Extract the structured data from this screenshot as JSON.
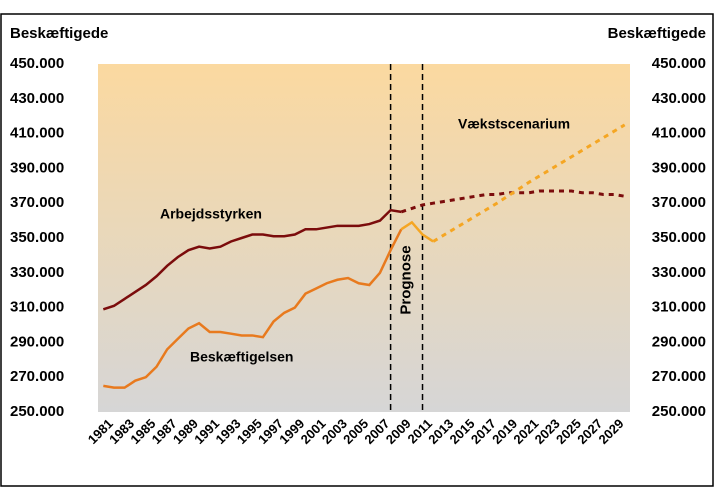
{
  "chart_data": {
    "type": "line",
    "y_title": "Beskæftigede",
    "y2_title": "Beskæftigede",
    "xlim": [
      1980.5,
      2030.5
    ],
    "xticks": [
      1981,
      1983,
      1985,
      1987,
      1989,
      1991,
      1993,
      1995,
      1997,
      1999,
      2001,
      2003,
      2005,
      2007,
      2009,
      2011,
      2013,
      2015,
      2017,
      2019,
      2021,
      2023,
      2025,
      2027,
      2029
    ],
    "ylim": [
      250000,
      450000
    ],
    "yticks": [
      {
        "value": 250000,
        "label": "250.000"
      },
      {
        "value": 270000,
        "label": "270.000"
      },
      {
        "value": 290000,
        "label": "290.000"
      },
      {
        "value": 310000,
        "label": "310.000"
      },
      {
        "value": 330000,
        "label": "330.000"
      },
      {
        "value": 350000,
        "label": "350.000"
      },
      {
        "value": 370000,
        "label": "370.000"
      },
      {
        "value": 390000,
        "label": "390.000"
      },
      {
        "value": 410000,
        "label": "410.000"
      },
      {
        "value": 430000,
        "label": "430.000"
      },
      {
        "value": 450000,
        "label": "450.000"
      }
    ],
    "y2lim": [
      250000,
      450000
    ],
    "y2ticks": [
      {
        "value": 250000,
        "label": "250.000"
      },
      {
        "value": 270000,
        "label": "270.000"
      },
      {
        "value": 290000,
        "label": "290.000"
      },
      {
        "value": 310000,
        "label": "310.000"
      },
      {
        "value": 330000,
        "label": "330.000"
      },
      {
        "value": 350000,
        "label": "350.000"
      },
      {
        "value": 370000,
        "label": "370.000"
      },
      {
        "value": 390000,
        "label": "390.000"
      },
      {
        "value": 410000,
        "label": "410.000"
      },
      {
        "value": 430000,
        "label": "430.000"
      },
      {
        "value": 450000,
        "label": "450.000"
      }
    ],
    "prognose": {
      "label": "Prognose",
      "from": 2008,
      "to": 2011
    },
    "series": [
      {
        "name": "Arbejdsstyrken",
        "color": "#7b0c0c",
        "dashed": false,
        "x": [
          1981,
          1982,
          1983,
          1984,
          1985,
          1986,
          1987,
          1988,
          1989,
          1990,
          1991,
          1992,
          1993,
          1994,
          1995,
          1996,
          1997,
          1998,
          1999,
          2000,
          2001,
          2002,
          2003,
          2004,
          2005,
          2006,
          2007,
          2008,
          2009
        ],
        "values": [
          309000,
          311000,
          315000,
          319000,
          323000,
          328000,
          334000,
          339000,
          343000,
          345000,
          344000,
          345000,
          348000,
          350000,
          352000,
          352000,
          351000,
          351000,
          352000,
          355000,
          355000,
          356000,
          357000,
          357000,
          357000,
          358000,
          360000,
          366000,
          365000
        ]
      },
      {
        "color": "#7b0c0c",
        "dashed": true,
        "x": [
          2009,
          2010,
          2011,
          2012,
          2013,
          2014,
          2015,
          2016,
          2017,
          2018,
          2019,
          2020,
          2021,
          2022,
          2023,
          2024,
          2025,
          2026,
          2027,
          2028,
          2029,
          2030
        ],
        "values": [
          365000,
          367000,
          369000,
          370000,
          371000,
          372000,
          373000,
          374000,
          375000,
          375000,
          376000,
          376000,
          376000,
          377000,
          377000,
          377000,
          377000,
          376000,
          376000,
          375000,
          375000,
          374000
        ]
      },
      {
        "name": "Beskæftigelsen",
        "color": "#e87a1e",
        "dashed": false,
        "x": [
          1981,
          1982,
          1983,
          1984,
          1985,
          1986,
          1987,
          1988,
          1989,
          1990,
          1991,
          1992,
          1993,
          1994,
          1995,
          1996,
          1997,
          1998,
          1999,
          2000,
          2001,
          2002,
          2003,
          2004,
          2005,
          2006,
          2007,
          2008,
          2009
        ],
        "values": [
          265000,
          264000,
          264000,
          268000,
          270000,
          276000,
          286000,
          292000,
          298000,
          301000,
          296000,
          296000,
          295000,
          294000,
          294000,
          293000,
          302000,
          307000,
          310000,
          318000,
          321000,
          324000,
          326000,
          327000,
          324000,
          323000,
          330000,
          343000,
          355000
        ]
      },
      {
        "color": "#f5a623",
        "dashed": false,
        "x": [
          2009,
          2010,
          2011,
          2012
        ],
        "values": [
          355000,
          359000,
          352000,
          348000
        ]
      },
      {
        "name": "Vækstscenarium",
        "color": "#f5a623",
        "dashed": true,
        "x": [
          2012,
          2015,
          2018,
          2021,
          2024,
          2027,
          2030
        ],
        "values": [
          348000,
          359000,
          370000,
          382000,
          393000,
          404000,
          415000
        ]
      }
    ]
  }
}
